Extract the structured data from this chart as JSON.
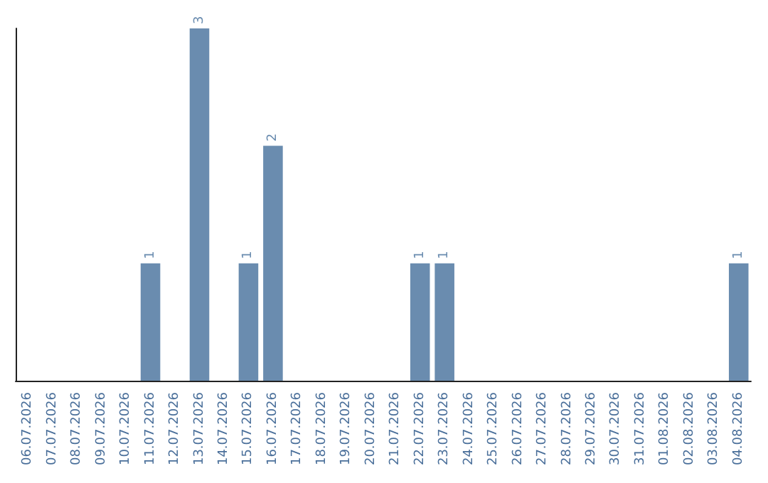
{
  "chart_data": {
    "type": "bar",
    "categories": [
      "06.07.2026",
      "07.07.2026",
      "08.07.2026",
      "09.07.2026",
      "10.07.2026",
      "11.07.2026",
      "12.07.2026",
      "13.07.2026",
      "14.07.2026",
      "15.07.2026",
      "16.07.2026",
      "17.07.2026",
      "18.07.2026",
      "19.07.2026",
      "20.07.2026",
      "21.07.2026",
      "22.07.2026",
      "23.07.2026",
      "24.07.2026",
      "25.07.2026",
      "26.07.2026",
      "27.07.2026",
      "28.07.2026",
      "29.07.2026",
      "30.07.2026",
      "31.07.2026",
      "01.08.2026",
      "02.08.2026",
      "03.08.2026",
      "04.08.2026"
    ],
    "values": [
      0,
      0,
      0,
      0,
      0,
      1,
      0,
      3,
      0,
      1,
      2,
      0,
      0,
      0,
      0,
      0,
      1,
      1,
      0,
      0,
      0,
      0,
      0,
      0,
      0,
      0,
      0,
      0,
      0,
      1
    ],
    "value_labels": [
      null,
      null,
      null,
      null,
      null,
      "1",
      null,
      "3",
      null,
      "1",
      "2",
      null,
      null,
      null,
      null,
      null,
      "1",
      "1",
      null,
      null,
      null,
      null,
      null,
      null,
      null,
      null,
      null,
      null,
      null,
      "1"
    ],
    "color": "#6a8caf",
    "tick_labels": "x",
    "grid": false
  }
}
